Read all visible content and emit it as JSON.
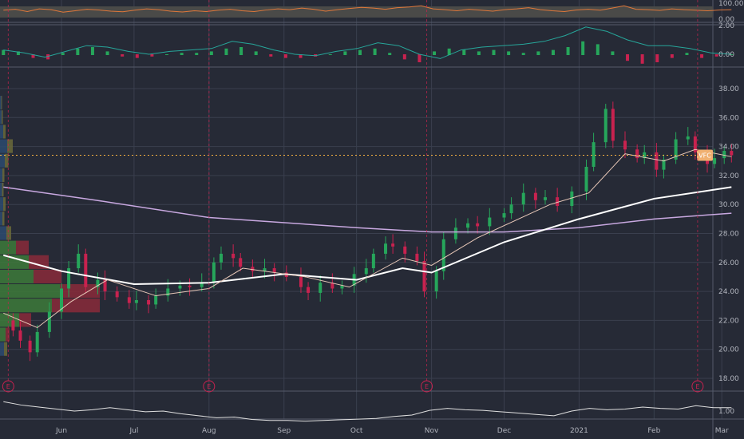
{
  "chart_data": {
    "type": "candlestick",
    "ticker_label": "VFC",
    "last_price": 33.4,
    "colors": {
      "up": "#26a65b",
      "down": "#c8224f",
      "sma200": "#c8a8e0",
      "sma50": "#ffffff",
      "sma20": "#e8c8b8",
      "last_price_line": "#f5b041",
      "earnings": "#c8224f",
      "rsi": "#e0783a"
    },
    "x_axis": {
      "ticks": [
        {
          "label": "Jun",
          "date": "2020-06-01"
        },
        {
          "label": "Jul",
          "date": "2020-07-01"
        },
        {
          "label": "Aug",
          "date": "2020-08-01"
        },
        {
          "label": "Sep",
          "date": "2020-09-01"
        },
        {
          "label": "Oct",
          "date": "2020-10-01"
        },
        {
          "label": "Nov",
          "date": "2020-11-01"
        },
        {
          "label": "Dec",
          "date": "2020-12-01"
        },
        {
          "label": "2021",
          "date": "2021-01-01"
        },
        {
          "label": "Feb",
          "date": "2021-02-01"
        },
        {
          "label": "Mar",
          "date": "2021-03-01"
        }
      ]
    },
    "y_axis": {
      "ticks": [
        "38.00",
        "36.00",
        "34.00",
        "32.00",
        "30.00",
        "28.00",
        "26.00",
        "24.00",
        "22.00",
        "20.00",
        "18.00"
      ],
      "ylim": [
        17,
        39.5
      ]
    },
    "closes": [
      [
        "2020-05-08",
        22.0
      ],
      [
        "2020-05-12",
        21.3
      ],
      [
        "2020-05-15",
        20.6
      ],
      [
        "2020-05-19",
        19.8
      ],
      [
        "2020-05-22",
        21.2
      ],
      [
        "2020-05-27",
        22.6
      ],
      [
        "2020-06-01",
        24.2
      ],
      [
        "2020-06-04",
        25.6
      ],
      [
        "2020-06-08",
        26.6
      ],
      [
        "2020-06-11",
        24.3
      ],
      [
        "2020-06-16",
        24.8
      ],
      [
        "2020-06-19",
        24.0
      ],
      [
        "2020-06-24",
        23.6
      ],
      [
        "2020-06-29",
        23.2
      ],
      [
        "2020-07-02",
        23.4
      ],
      [
        "2020-07-07",
        23.1
      ],
      [
        "2020-07-10",
        23.7
      ],
      [
        "2020-07-15",
        24.2
      ],
      [
        "2020-07-20",
        24.4
      ],
      [
        "2020-07-24",
        24.3
      ],
      [
        "2020-07-29",
        24.6
      ],
      [
        "2020-08-03",
        26.0
      ],
      [
        "2020-08-06",
        26.6
      ],
      [
        "2020-08-11",
        26.3
      ],
      [
        "2020-08-14",
        25.7
      ],
      [
        "2020-08-19",
        25.4
      ],
      [
        "2020-08-24",
        25.6
      ],
      [
        "2020-08-28",
        25.3
      ],
      [
        "2020-09-02",
        25.0
      ],
      [
        "2020-09-08",
        24.3
      ],
      [
        "2020-09-11",
        23.9
      ],
      [
        "2020-09-16",
        24.6
      ],
      [
        "2020-09-21",
        24.2
      ],
      [
        "2020-09-25",
        24.4
      ],
      [
        "2020-09-30",
        25.2
      ],
      [
        "2020-10-05",
        25.6
      ],
      [
        "2020-10-08",
        26.6
      ],
      [
        "2020-10-13",
        27.3
      ],
      [
        "2020-10-16",
        27.1
      ],
      [
        "2020-10-21",
        26.6
      ],
      [
        "2020-10-26",
        26.1
      ],
      [
        "2020-10-29",
        24.0
      ],
      [
        "2020-11-03",
        25.4
      ],
      [
        "2020-11-06",
        27.6
      ],
      [
        "2020-11-11",
        28.4
      ],
      [
        "2020-11-16",
        28.7
      ],
      [
        "2020-11-20",
        28.5
      ],
      [
        "2020-11-25",
        29.1
      ],
      [
        "2020-12-01",
        29.4
      ],
      [
        "2020-12-04",
        30.0
      ],
      [
        "2020-12-09",
        30.8
      ],
      [
        "2020-12-14",
        30.3
      ],
      [
        "2020-12-18",
        30.5
      ],
      [
        "2020-12-23",
        29.9
      ],
      [
        "2020-12-29",
        30.9
      ],
      [
        "2021-01-04",
        32.6
      ],
      [
        "2021-01-07",
        34.3
      ],
      [
        "2021-01-12",
        36.6
      ],
      [
        "2021-01-15",
        34.4
      ],
      [
        "2021-01-20",
        33.8
      ],
      [
        "2021-01-25",
        33.2
      ],
      [
        "2021-01-28",
        33.6
      ],
      [
        "2021-02-02",
        32.4
      ],
      [
        "2021-02-05",
        33.1
      ],
      [
        "2021-02-10",
        34.5
      ],
      [
        "2021-02-15",
        34.7
      ],
      [
        "2021-02-18",
        33.6
      ],
      [
        "2021-02-23",
        32.8
      ],
      [
        "2021-02-26",
        33.2
      ],
      [
        "2021-03-02",
        33.7
      ],
      [
        "2021-03-05",
        33.4
      ]
    ],
    "sma200": [
      [
        "2020-05-08",
        26.4
      ],
      [
        "2020-06-01",
        25.4
      ],
      [
        "2020-07-01",
        24.6
      ],
      [
        "2020-07-15",
        24.4
      ],
      [
        "2020-07-30",
        31.0
      ]
    ],
    "sma200_upper": [
      [
        "2020-05-08",
        31.2
      ],
      [
        "2020-06-15",
        30.3
      ],
      [
        "2020-08-01",
        29.1
      ],
      [
        "2020-10-01",
        28.4
      ],
      [
        "2020-11-01",
        28.1
      ],
      [
        "2020-12-01",
        28.1
      ],
      [
        "2021-01-01",
        28.4
      ],
      [
        "2021-02-01",
        29.0
      ],
      [
        "2021-03-05",
        29.4
      ]
    ],
    "sma50": [
      [
        "2020-05-08",
        26.5
      ],
      [
        "2020-06-01",
        25.4
      ],
      [
        "2020-07-01",
        24.5
      ],
      [
        "2020-08-01",
        24.6
      ],
      [
        "2020-09-01",
        25.2
      ],
      [
        "2020-10-01",
        24.8
      ],
      [
        "2020-10-20",
        25.6
      ],
      [
        "2020-11-01",
        25.3
      ],
      [
        "2020-12-01",
        27.4
      ],
      [
        "2021-01-01",
        29.0
      ],
      [
        "2021-02-01",
        30.4
      ],
      [
        "2021-03-05",
        31.2
      ]
    ],
    "sma20": [
      [
        "2020-05-08",
        22.5
      ],
      [
        "2020-05-22",
        21.5
      ],
      [
        "2020-06-05",
        23.3
      ],
      [
        "2020-06-20",
        24.8
      ],
      [
        "2020-07-10",
        23.7
      ],
      [
        "2020-08-01",
        24.2
      ],
      [
        "2020-08-15",
        25.6
      ],
      [
        "2020-09-10",
        25.0
      ],
      [
        "2020-09-28",
        24.3
      ],
      [
        "2020-10-20",
        26.3
      ],
      [
        "2020-11-01",
        25.8
      ],
      [
        "2020-11-20",
        27.7
      ],
      [
        "2020-12-20",
        30.0
      ],
      [
        "2021-01-05",
        30.8
      ],
      [
        "2021-01-20",
        33.5
      ],
      [
        "2021-02-05",
        33.0
      ],
      [
        "2021-02-18",
        33.8
      ],
      [
        "2021-03-05",
        33.3
      ]
    ],
    "earnings_dates": [
      "2020-05-10",
      "2020-08-01",
      "2020-10-30",
      "2021-02-19"
    ],
    "earnings_marker": "E",
    "volume_profile": [
      {
        "price": 37.0,
        "up": 3,
        "down": 2
      },
      {
        "price": 36.0,
        "up": 4,
        "down": 3
      },
      {
        "price": 35.0,
        "up": 8,
        "down": 6
      },
      {
        "price": 34.0,
        "up": 18,
        "down": 14
      },
      {
        "price": 33.0,
        "up": 12,
        "down": 9
      },
      {
        "price": 32.0,
        "up": 6,
        "down": 5
      },
      {
        "price": 31.0,
        "up": 5,
        "down": 4
      },
      {
        "price": 30.0,
        "up": 8,
        "down": 6
      },
      {
        "price": 29.0,
        "up": 6,
        "down": 5
      },
      {
        "price": 28.0,
        "up": 16,
        "down": 12
      },
      {
        "price": 27.0,
        "up": 40,
        "down": 32
      },
      {
        "price": 26.0,
        "up": 72,
        "down": 50
      },
      {
        "price": 25.0,
        "up": 84,
        "down": 70
      },
      {
        "price": 24.0,
        "up": 150,
        "down": 100
      },
      {
        "price": 23.0,
        "up": 130,
        "down": 120
      },
      {
        "price": 22.0,
        "up": 48,
        "down": 30
      },
      {
        "price": 21.0,
        "up": 14,
        "down": 10
      },
      {
        "price": 20.0,
        "up": 10,
        "down": 8
      }
    ],
    "rsi": {
      "ticks": [
        "100.00",
        "0.00"
      ],
      "values": [
        55,
        60,
        48,
        62,
        58,
        45,
        52,
        60,
        56,
        50,
        47,
        55,
        62,
        58,
        50,
        46,
        52,
        48,
        55,
        60,
        52,
        48,
        56,
        62,
        58,
        66,
        60,
        50,
        58,
        64,
        70,
        66,
        60,
        68,
        72,
        78,
        62,
        58,
        52,
        60,
        55,
        50,
        58,
        62,
        68,
        58,
        52,
        48,
        56,
        60,
        55,
        66,
        78,
        60,
        58,
        54,
        62,
        58,
        55,
        52,
        56,
        58
      ]
    },
    "macd": {
      "ticks": [
        "2.00",
        "0.00"
      ],
      "hist": [
        0.3,
        0.2,
        -0.2,
        -0.3,
        0.1,
        0.4,
        0.5,
        0.2,
        -0.1,
        -0.2,
        -0.1,
        0.0,
        0.1,
        0.1,
        0.2,
        0.4,
        0.5,
        0.2,
        -0.1,
        -0.2,
        -0.2,
        -0.1,
        0.0,
        0.2,
        0.3,
        0.4,
        0.1,
        -0.3,
        -0.5,
        0.2,
        0.4,
        0.3,
        0.2,
        0.3,
        0.2,
        0.1,
        0.2,
        0.3,
        0.5,
        0.9,
        0.7,
        0.2,
        -0.4,
        -0.6,
        -0.5,
        -0.2,
        0.1,
        -0.2,
        -0.1,
        0.0
      ],
      "line": [
        0.3,
        0.1,
        -0.2,
        0.2,
        0.6,
        0.5,
        0.2,
        0.0,
        0.2,
        0.3,
        0.4,
        0.9,
        0.7,
        0.3,
        0.0,
        -0.1,
        0.2,
        0.4,
        0.8,
        0.6,
        0.0,
        -0.3,
        0.3,
        0.5,
        0.6,
        0.7,
        0.9,
        1.3,
        1.9,
        1.6,
        1.0,
        0.6,
        0.6,
        0.4,
        0.1,
        0.0
      ]
    },
    "ratio": {
      "ticks": [
        "1.00"
      ],
      "values": [
        1.28,
        1.18,
        1.12,
        1.06,
        1.0,
        1.04,
        1.1,
        1.04,
        0.98,
        1.0,
        0.92,
        0.86,
        0.8,
        0.82,
        0.75,
        0.72,
        0.72,
        0.7,
        0.72,
        0.74,
        0.76,
        0.78,
        0.84,
        0.88,
        1.02,
        1.08,
        1.04,
        1.02,
        0.98,
        0.94,
        0.9,
        0.86,
        1.0,
        1.08,
        1.04,
        1.06,
        1.12,
        1.08,
        1.06,
        1.16,
        1.1,
        1.1
      ]
    }
  }
}
